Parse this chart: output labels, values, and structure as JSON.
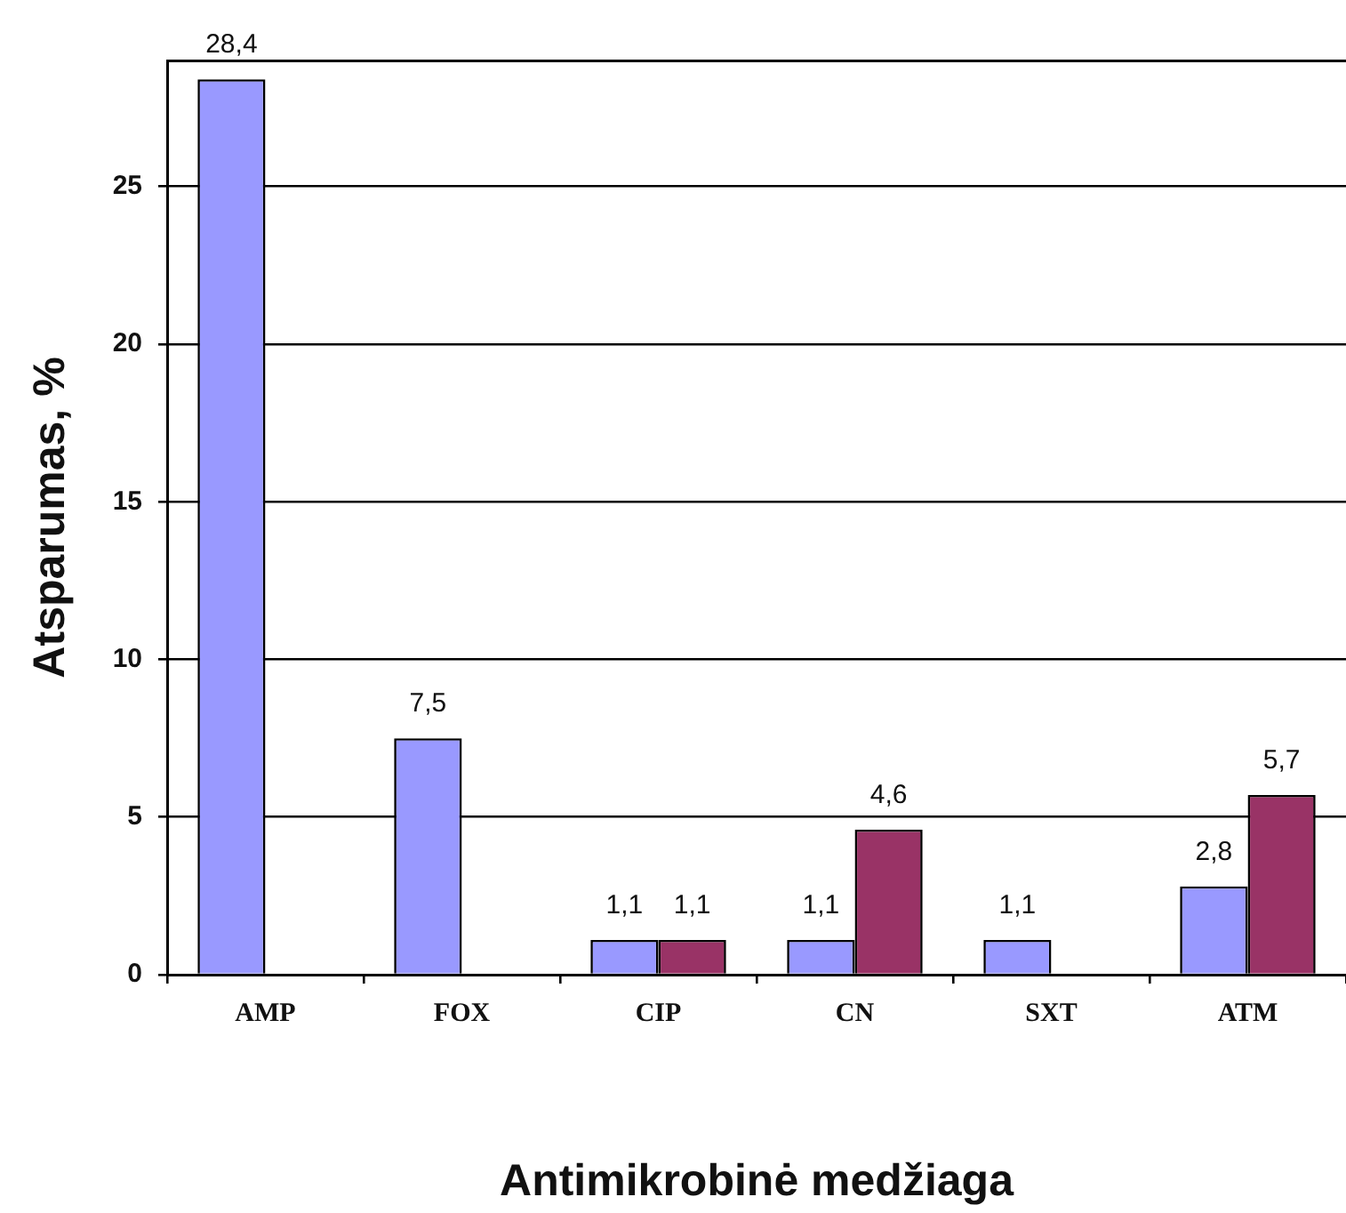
{
  "chart_data": {
    "type": "bar",
    "xlabel": "Antimikrobinė medžiaga",
    "ylabel": "Atsparumas, %",
    "categories": [
      "AMP",
      "FOX",
      "CIP",
      "CN",
      "SXT",
      "ATM"
    ],
    "series": [
      {
        "color": "#9999ff",
        "values": [
          28.4,
          7.5,
          1.1,
          1.1,
          1.1,
          2.8
        ],
        "value_labels": [
          "28,4",
          "7,5",
          "1,1",
          "1,1",
          "1,1",
          "2,8"
        ]
      },
      {
        "color": "#993366",
        "values": [
          null,
          null,
          1.1,
          4.6,
          null,
          5.7
        ],
        "value_labels": [
          null,
          null,
          "1,1",
          "4,6",
          null,
          "5,7"
        ]
      }
    ],
    "ylim": [
      0,
      29
    ],
    "yticks": [
      0,
      5,
      10,
      15,
      20,
      25
    ],
    "grid": "y",
    "legend": false
  }
}
